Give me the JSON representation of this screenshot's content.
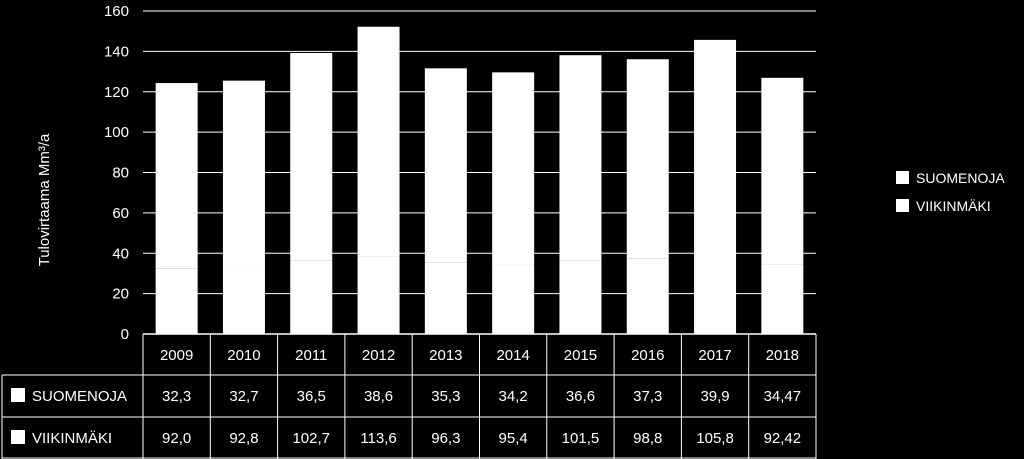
{
  "chart_data": {
    "type": "bar",
    "stacked": true,
    "categories": [
      "2009",
      "2010",
      "2011",
      "2012",
      "2013",
      "2014",
      "2015",
      "2016",
      "2017",
      "2018"
    ],
    "series": [
      {
        "name": "SUOMENOJA",
        "color": "#ffffff",
        "values": [
          32.3,
          32.7,
          36.5,
          38.6,
          35.3,
          34.2,
          36.6,
          37.3,
          39.9,
          34.47
        ],
        "labels": [
          "32,3",
          "32,7",
          "36,5",
          "38,6",
          "35,3",
          "34,2",
          "36,6",
          "37,3",
          "39,9",
          "34,47"
        ]
      },
      {
        "name": "VIIKINMÄKI",
        "color": "#ffffff",
        "values": [
          92.0,
          92.8,
          102.7,
          113.6,
          96.3,
          95.4,
          101.5,
          98.8,
          105.8,
          92.42
        ],
        "labels": [
          "92,0",
          "92,8",
          "102,7",
          "113,6",
          "96,3",
          "95,4",
          "101,5",
          "98,8",
          "105,8",
          "92,42"
        ]
      }
    ],
    "ylabel": "Tulovirtaama Mm³/a",
    "ylim": [
      0,
      160
    ],
    "yticks": [
      "0",
      "20",
      "40",
      "60",
      "80",
      "100",
      "120",
      "140",
      "160"
    ],
    "grid": true,
    "legend": "right",
    "data_table": true
  }
}
